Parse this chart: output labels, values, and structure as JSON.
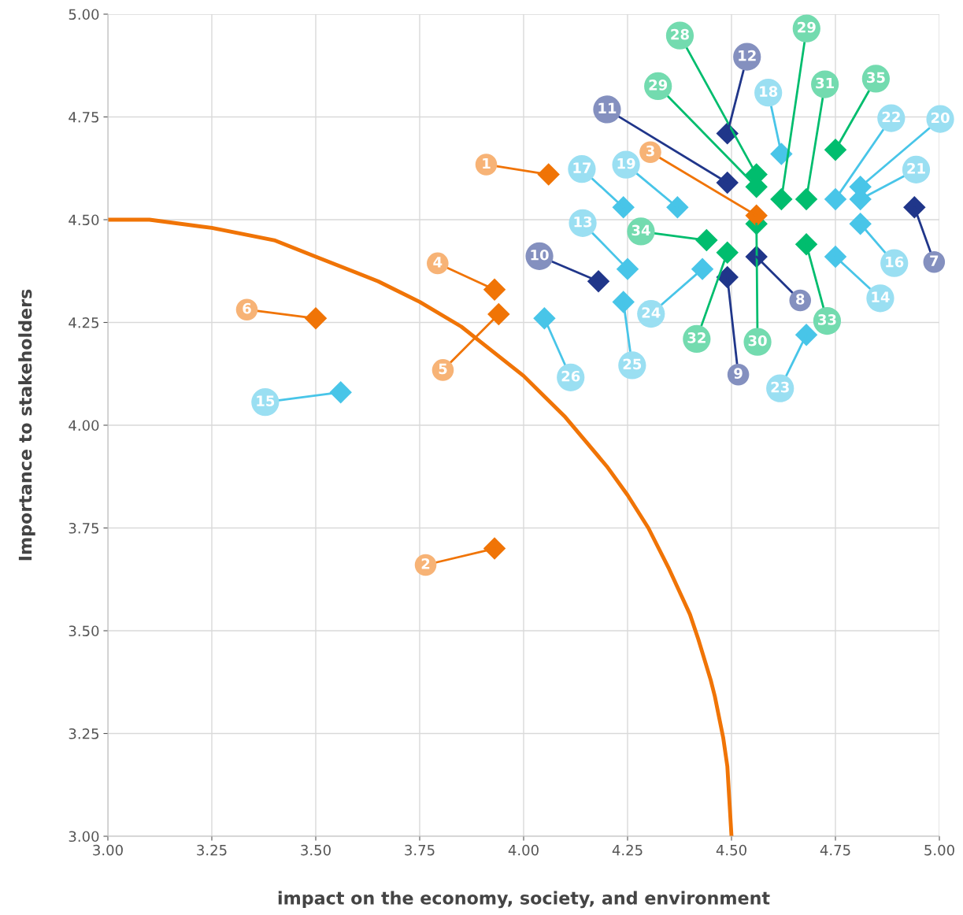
{
  "chart_data": {
    "type": "scatter",
    "xlabel": "impact on the economy, society, and environment",
    "ylabel": "Importance to stakeholders",
    "xlim": [
      3.0,
      5.0
    ],
    "ylim": [
      3.0,
      5.0
    ],
    "xticks": [
      {
        "value": 3.0,
        "label": "3.00"
      },
      {
        "value": 3.25,
        "label": "3.25"
      },
      {
        "value": 3.5,
        "label": "3.50"
      },
      {
        "value": 3.75,
        "label": "3.75"
      },
      {
        "value": 4.0,
        "label": "4.00"
      },
      {
        "value": 4.25,
        "label": "4.25"
      },
      {
        "value": 4.5,
        "label": "4.50"
      },
      {
        "value": 4.75,
        "label": "4.75"
      },
      {
        "value": 5.0,
        "label": "5.00"
      }
    ],
    "yticks": [
      {
        "value": 3.0,
        "label": "3.00"
      },
      {
        "value": 3.25,
        "label": "3.25"
      },
      {
        "value": 3.5,
        "label": "3.50"
      },
      {
        "value": 3.75,
        "label": "3.75"
      },
      {
        "value": 4.0,
        "label": "4.00"
      },
      {
        "value": 4.25,
        "label": "4.25"
      },
      {
        "value": 4.5,
        "label": "4.50"
      },
      {
        "value": 4.75,
        "label": "4.75"
      },
      {
        "value": 5.0,
        "label": "5.00"
      }
    ],
    "grid": true,
    "marker": "diamond",
    "series": [
      {
        "type": "line",
        "color": "#f07406",
        "marker": "none",
        "line_style": "solid",
        "x": [
          3.0,
          3.1,
          3.25,
          3.4,
          3.5,
          3.6,
          3.65,
          3.75,
          3.85,
          3.9,
          4.0,
          4.05,
          4.1,
          4.15,
          4.2,
          4.25,
          4.3,
          4.35,
          4.4,
          4.42,
          4.45,
          4.46,
          4.48,
          4.49,
          4.5
        ],
        "values": [
          4.5,
          4.5,
          4.48,
          4.45,
          4.41,
          4.37,
          4.35,
          4.3,
          4.24,
          4.2,
          4.12,
          4.07,
          4.02,
          3.96,
          3.9,
          3.83,
          3.75,
          3.65,
          3.54,
          3.48,
          3.38,
          3.34,
          3.24,
          3.17,
          3.0
        ]
      },
      {
        "color": "#00bd6e",
        "x": [
          4.56,
          4.56,
          4.62,
          4.56,
          4.68,
          4.49,
          4.68,
          4.44,
          4.75
        ],
        "values": [
          4.61,
          4.58,
          4.55,
          4.49,
          4.55,
          4.42,
          4.44,
          4.45,
          4.67
        ]
      },
      {
        "color": "#20368a",
        "x": [
          4.94,
          4.56,
          4.49,
          4.18,
          4.49,
          4.49
        ],
        "values": [
          4.53,
          4.41,
          4.36,
          4.35,
          4.59,
          4.71
        ]
      },
      {
        "color": "#48c5e8",
        "x": [
          4.25,
          4.75,
          3.56,
          4.81,
          4.24,
          4.62,
          4.37,
          4.81,
          4.81,
          4.75,
          4.68,
          4.43,
          4.24,
          4.05
        ],
        "values": [
          4.38,
          4.41,
          4.08,
          4.49,
          4.53,
          4.66,
          4.53,
          4.58,
          4.55,
          4.55,
          4.22,
          4.38,
          4.3,
          4.26
        ]
      },
      {
        "color": "#f07406",
        "x": [
          4.06,
          3.93,
          4.56,
          3.93,
          3.94,
          3.5
        ],
        "values": [
          4.61,
          3.7,
          4.51,
          4.33,
          4.27,
          4.26
        ]
      }
    ],
    "annotations": [
      {
        "text": "28",
        "x": 4.56,
        "y": 4.61
      },
      {
        "text": "29",
        "x": 4.56,
        "y": 4.58
      },
      {
        "text": "29",
        "x": 4.62,
        "y": 4.55
      },
      {
        "text": "30",
        "x": 4.56,
        "y": 4.49
      },
      {
        "text": "31",
        "x": 4.68,
        "y": 4.55
      },
      {
        "text": "32",
        "x": 4.49,
        "y": 4.42
      },
      {
        "text": "33",
        "x": 4.68,
        "y": 4.44
      },
      {
        "text": "34",
        "x": 4.44,
        "y": 4.45
      },
      {
        "text": "35",
        "x": 4.75,
        "y": 4.67
      },
      {
        "text": "7",
        "x": 4.94,
        "y": 4.53
      },
      {
        "text": "8",
        "x": 4.56,
        "y": 4.41
      },
      {
        "text": "9",
        "x": 4.49,
        "y": 4.36
      },
      {
        "text": "10",
        "x": 4.18,
        "y": 4.35
      },
      {
        "text": "11",
        "x": 4.49,
        "y": 4.59
      },
      {
        "text": "12",
        "x": 4.49,
        "y": 4.71
      },
      {
        "text": "13",
        "x": 4.25,
        "y": 4.38
      },
      {
        "text": "14",
        "x": 4.75,
        "y": 4.41
      },
      {
        "text": "15",
        "x": 3.56,
        "y": 4.08
      },
      {
        "text": "16",
        "x": 4.81,
        "y": 4.49
      },
      {
        "text": "17",
        "x": 4.24,
        "y": 4.53
      },
      {
        "text": "18",
        "x": 4.62,
        "y": 4.66
      },
      {
        "text": "19",
        "x": 4.37,
        "y": 4.53
      },
      {
        "text": "20",
        "x": 4.81,
        "y": 4.58
      },
      {
        "text": "21",
        "x": 4.81,
        "y": 4.55
      },
      {
        "text": "22",
        "x": 4.75,
        "y": 4.55
      },
      {
        "text": "23",
        "x": 4.68,
        "y": 4.22
      },
      {
        "text": "24",
        "x": 4.43,
        "y": 4.38
      },
      {
        "text": "25",
        "x": 4.24,
        "y": 4.3
      },
      {
        "text": "26",
        "x": 4.05,
        "y": 4.26
      },
      {
        "text": "1",
        "x": 4.06,
        "y": 4.61
      },
      {
        "text": "2",
        "x": 3.93,
        "y": 3.7
      },
      {
        "text": "3",
        "x": 4.56,
        "y": 4.51
      },
      {
        "text": "4",
        "x": 3.93,
        "y": 4.33
      },
      {
        "text": "5",
        "x": 3.94,
        "y": 4.27
      },
      {
        "text": "6",
        "x": 3.5,
        "y": 4.26
      }
    ]
  }
}
